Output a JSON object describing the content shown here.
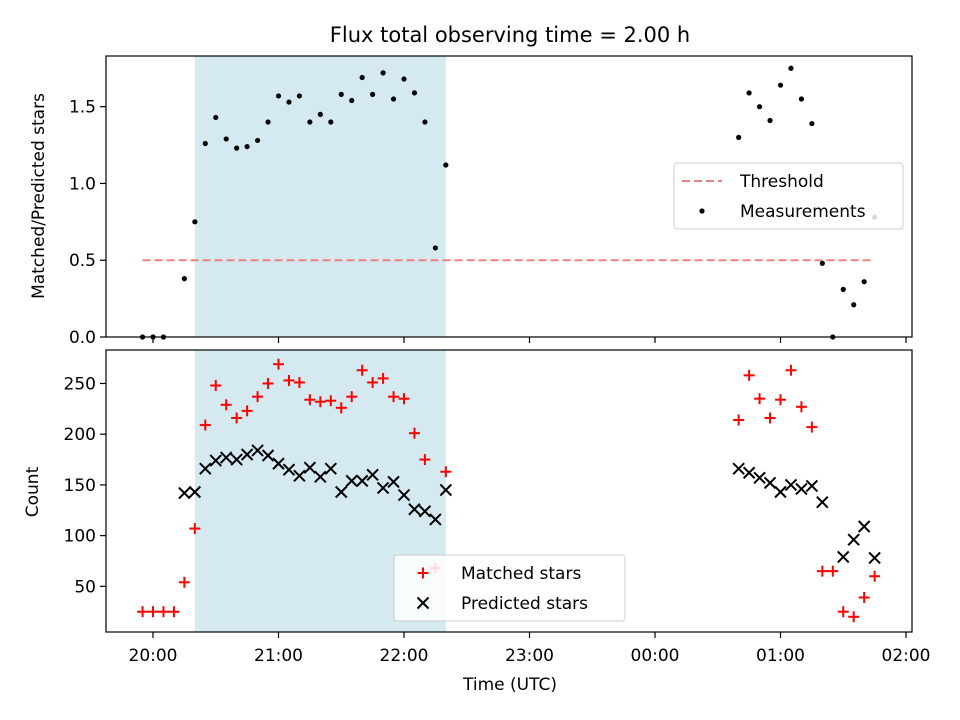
{
  "chart_data": [
    {
      "type": "scatter",
      "title": "Flux total observing time = 2.00 h",
      "xlabel": "",
      "ylabel": "Matched/Predicted stars",
      "ylim": [
        0,
        1.83
      ],
      "yticks": [
        "0.0",
        "0.5",
        "1.0",
        "1.5"
      ],
      "ytick_values": [
        0,
        0.5,
        1.0,
        1.5
      ],
      "x_axis": "time (UTC)",
      "highlight_span": {
        "start": "20:20",
        "end": "22:20",
        "color": "#d4eaf0"
      },
      "threshold": {
        "name": "Threshold",
        "value": 0.5,
        "x_start": "19:55",
        "x_end": "01:45",
        "color": "#f08080",
        "style": "dashed"
      },
      "series": [
        {
          "name": "Measurements",
          "color": "#000000",
          "marker": "dot",
          "points": [
            {
              "x": "19:55",
              "y": 0.0
            },
            {
              "x": "20:00",
              "y": 0.0
            },
            {
              "x": "20:05",
              "y": 0.0
            },
            {
              "x": "20:15",
              "y": 0.38
            },
            {
              "x": "20:20",
              "y": 0.75
            },
            {
              "x": "20:25",
              "y": 1.26
            },
            {
              "x": "20:30",
              "y": 1.43
            },
            {
              "x": "20:35",
              "y": 1.29
            },
            {
              "x": "20:40",
              "y": 1.23
            },
            {
              "x": "20:45",
              "y": 1.24
            },
            {
              "x": "20:50",
              "y": 1.28
            },
            {
              "x": "20:55",
              "y": 1.4
            },
            {
              "x": "21:00",
              "y": 1.57
            },
            {
              "x": "21:05",
              "y": 1.53
            },
            {
              "x": "21:10",
              "y": 1.57
            },
            {
              "x": "21:15",
              "y": 1.4
            },
            {
              "x": "21:20",
              "y": 1.45
            },
            {
              "x": "21:25",
              "y": 1.4
            },
            {
              "x": "21:30",
              "y": 1.58
            },
            {
              "x": "21:35",
              "y": 1.54
            },
            {
              "x": "21:40",
              "y": 1.69
            },
            {
              "x": "21:45",
              "y": 1.58
            },
            {
              "x": "21:50",
              "y": 1.72
            },
            {
              "x": "21:55",
              "y": 1.55
            },
            {
              "x": "22:00",
              "y": 1.68
            },
            {
              "x": "22:05",
              "y": 1.59
            },
            {
              "x": "22:10",
              "y": 1.4
            },
            {
              "x": "22:15",
              "y": 0.58
            },
            {
              "x": "22:20",
              "y": 1.12
            },
            {
              "x": "00:40",
              "y": 1.3
            },
            {
              "x": "00:45",
              "y": 1.59
            },
            {
              "x": "00:50",
              "y": 1.5
            },
            {
              "x": "00:55",
              "y": 1.41
            },
            {
              "x": "01:00",
              "y": 1.64
            },
            {
              "x": "01:05",
              "y": 1.75
            },
            {
              "x": "01:10",
              "y": 1.55
            },
            {
              "x": "01:15",
              "y": 1.39
            },
            {
              "x": "01:20",
              "y": 0.48
            },
            {
              "x": "01:25",
              "y": 0.0
            },
            {
              "x": "01:30",
              "y": 0.31
            },
            {
              "x": "01:35",
              "y": 0.21
            },
            {
              "x": "01:40",
              "y": 0.36
            },
            {
              "x": "01:45",
              "y": 0.78
            }
          ]
        }
      ],
      "legend": {
        "placement": "right",
        "entries": [
          "Threshold",
          "Measurements"
        ]
      }
    },
    {
      "type": "scatter",
      "title": "",
      "xlabel": "Time (UTC)",
      "ylabel": "Count",
      "ylim": [
        5,
        283
      ],
      "yticks": [
        "50",
        "100",
        "150",
        "200",
        "250"
      ],
      "ytick_values": [
        50,
        100,
        150,
        200,
        250
      ],
      "xticks": [
        "20:00",
        "21:00",
        "22:00",
        "23:00",
        "00:00",
        "01:00",
        "02:00"
      ],
      "highlight_span": {
        "start": "20:20",
        "end": "22:20",
        "color": "#d4eaf0"
      },
      "series": [
        {
          "name": "Matched stars",
          "color": "#ff0000",
          "marker": "plus",
          "points": [
            {
              "x": "19:55",
              "y": 25
            },
            {
              "x": "20:00",
              "y": 25
            },
            {
              "x": "20:05",
              "y": 25
            },
            {
              "x": "20:10",
              "y": 25
            },
            {
              "x": "20:15",
              "y": 54
            },
            {
              "x": "20:20",
              "y": 107
            },
            {
              "x": "20:25",
              "y": 209
            },
            {
              "x": "20:30",
              "y": 248
            },
            {
              "x": "20:35",
              "y": 229
            },
            {
              "x": "20:40",
              "y": 216
            },
            {
              "x": "20:45",
              "y": 223
            },
            {
              "x": "20:50",
              "y": 237
            },
            {
              "x": "20:55",
              "y": 250
            },
            {
              "x": "21:00",
              "y": 269
            },
            {
              "x": "21:05",
              "y": 253
            },
            {
              "x": "21:10",
              "y": 251
            },
            {
              "x": "21:15",
              "y": 234
            },
            {
              "x": "21:20",
              "y": 232
            },
            {
              "x": "21:25",
              "y": 233
            },
            {
              "x": "21:30",
              "y": 226
            },
            {
              "x": "21:35",
              "y": 237
            },
            {
              "x": "21:40",
              "y": 263
            },
            {
              "x": "21:45",
              "y": 251
            },
            {
              "x": "21:50",
              "y": 255
            },
            {
              "x": "21:55",
              "y": 237
            },
            {
              "x": "22:00",
              "y": 235
            },
            {
              "x": "22:05",
              "y": 201
            },
            {
              "x": "22:10",
              "y": 175
            },
            {
              "x": "22:15",
              "y": 68
            },
            {
              "x": "22:20",
              "y": 163
            },
            {
              "x": "00:40",
              "y": 214
            },
            {
              "x": "00:45",
              "y": 258
            },
            {
              "x": "00:50",
              "y": 235
            },
            {
              "x": "00:55",
              "y": 216
            },
            {
              "x": "01:00",
              "y": 234
            },
            {
              "x": "01:05",
              "y": 263
            },
            {
              "x": "01:10",
              "y": 227
            },
            {
              "x": "01:15",
              "y": 207
            },
            {
              "x": "01:20",
              "y": 65
            },
            {
              "x": "01:25",
              "y": 65
            },
            {
              "x": "01:30",
              "y": 25
            },
            {
              "x": "01:35",
              "y": 20
            },
            {
              "x": "01:40",
              "y": 39
            },
            {
              "x": "01:45",
              "y": 60
            }
          ]
        },
        {
          "name": "Predicted stars",
          "color": "#000000",
          "marker": "x",
          "points": [
            {
              "x": "20:15",
              "y": 142
            },
            {
              "x": "20:20",
              "y": 143
            },
            {
              "x": "20:25",
              "y": 166
            },
            {
              "x": "20:30",
              "y": 174
            },
            {
              "x": "20:35",
              "y": 177
            },
            {
              "x": "20:40",
              "y": 175
            },
            {
              "x": "20:45",
              "y": 180
            },
            {
              "x": "20:50",
              "y": 184
            },
            {
              "x": "20:55",
              "y": 179
            },
            {
              "x": "21:00",
              "y": 171
            },
            {
              "x": "21:05",
              "y": 165
            },
            {
              "x": "21:10",
              "y": 159
            },
            {
              "x": "21:15",
              "y": 167
            },
            {
              "x": "21:20",
              "y": 158
            },
            {
              "x": "21:25",
              "y": 166
            },
            {
              "x": "21:30",
              "y": 143
            },
            {
              "x": "21:35",
              "y": 154
            },
            {
              "x": "21:40",
              "y": 154
            },
            {
              "x": "21:45",
              "y": 160
            },
            {
              "x": "21:50",
              "y": 147
            },
            {
              "x": "21:55",
              "y": 153
            },
            {
              "x": "22:00",
              "y": 140
            },
            {
              "x": "22:05",
              "y": 126
            },
            {
              "x": "22:10",
              "y": 124
            },
            {
              "x": "22:15",
              "y": 116
            },
            {
              "x": "22:20",
              "y": 145
            },
            {
              "x": "00:40",
              "y": 166
            },
            {
              "x": "00:45",
              "y": 162
            },
            {
              "x": "00:50",
              "y": 157
            },
            {
              "x": "00:55",
              "y": 152
            },
            {
              "x": "01:00",
              "y": 143
            },
            {
              "x": "01:05",
              "y": 150
            },
            {
              "x": "01:10",
              "y": 146
            },
            {
              "x": "01:15",
              "y": 149
            },
            {
              "x": "01:20",
              "y": 133
            },
            {
              "x": "01:30",
              "y": 79
            },
            {
              "x": "01:35",
              "y": 96
            },
            {
              "x": "01:40",
              "y": 109
            },
            {
              "x": "01:45",
              "y": 78
            }
          ]
        }
      ],
      "legend": {
        "placement": "bottom-center",
        "entries": [
          "Matched stars",
          "Predicted stars"
        ]
      }
    }
  ]
}
